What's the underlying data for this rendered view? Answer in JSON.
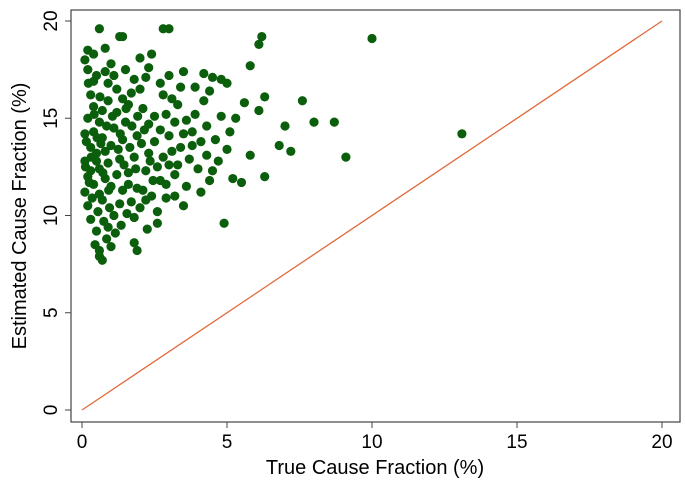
{
  "chart_data": {
    "type": "scatter",
    "title": "",
    "xlabel": "True Cause Fraction (%)",
    "ylabel": "Estimated Cause Fraction (%)",
    "xlim": [
      -0.4,
      20.5
    ],
    "ylim": [
      -0.6,
      20.6
    ],
    "xticks": [
      0,
      5,
      10,
      15,
      20
    ],
    "yticks": [
      0,
      5,
      10,
      15,
      20
    ],
    "grid": false,
    "point_color": "#0b5e0b",
    "line_color": "#e06a3a",
    "reference_line": {
      "from": [
        0,
        0
      ],
      "to": [
        20,
        20
      ]
    },
    "points": [
      [
        10,
        19.1
      ],
      [
        13.1,
        14.2
      ],
      [
        9.1,
        13
      ],
      [
        8.7,
        14.8
      ],
      [
        8,
        14.8
      ],
      [
        7.6,
        15.9
      ],
      [
        7.2,
        13.3
      ],
      [
        7,
        14.6
      ],
      [
        6.8,
        13.6
      ],
      [
        6.3,
        12
      ],
      [
        6.2,
        19.2
      ],
      [
        6.1,
        18.8
      ],
      [
        5.8,
        17.7
      ],
      [
        6.3,
        16.1
      ],
      [
        6.1,
        15.4
      ],
      [
        5.6,
        15.8
      ],
      [
        5.3,
        15
      ],
      [
        4.9,
        9.6
      ],
      [
        3,
        19.6
      ],
      [
        2.8,
        19.6
      ],
      [
        0.6,
        19.6
      ],
      [
        1.3,
        19.2
      ],
      [
        1.4,
        19.2
      ],
      [
        0.2,
        18.5
      ],
      [
        0.7,
        7.7
      ],
      [
        0.6,
        7.9
      ],
      [
        1.9,
        8.2
      ],
      [
        1.8,
        8.6
      ],
      [
        4.5,
        17.1
      ],
      [
        4.8,
        17
      ],
      [
        5,
        16.8
      ],
      [
        4.2,
        17.3
      ],
      [
        5.8,
        13.1
      ],
      [
        5.5,
        11.7
      ],
      [
        5.2,
        11.9
      ],
      [
        4.4,
        11.8
      ],
      [
        3.5,
        10.5
      ],
      [
        3.2,
        11
      ],
      [
        0.1,
        18
      ],
      [
        0.4,
        18.3
      ],
      [
        0.8,
        18.6
      ],
      [
        1,
        17.8
      ],
      [
        0.5,
        17.2
      ],
      [
        1.5,
        17.5
      ],
      [
        2,
        18.1
      ],
      [
        2.4,
        18.3
      ],
      [
        2.2,
        17.1
      ],
      [
        1.2,
        16.5
      ],
      [
        0.3,
        16.2
      ],
      [
        0.9,
        15.9
      ],
      [
        1.7,
        16.3
      ],
      [
        2.7,
        16.8
      ],
      [
        3.1,
        16
      ],
      [
        3.3,
        15.7
      ],
      [
        2.9,
        15.2
      ],
      [
        3.6,
        14.9
      ],
      [
        3.8,
        14.3
      ],
      [
        4.1,
        13.8
      ],
      [
        4.3,
        14.6
      ],
      [
        4.6,
        13.9
      ],
      [
        4.7,
        12.8
      ],
      [
        4.0,
        12.4
      ],
      [
        3.7,
        12.9
      ],
      [
        3.4,
        13.5
      ],
      [
        3.2,
        12.1
      ],
      [
        2.9,
        11.6
      ],
      [
        2.6,
        12.5
      ],
      [
        2.5,
        13.8
      ],
      [
        2.3,
        14.7
      ],
      [
        2.1,
        15.5
      ],
      [
        1.9,
        14.1
      ],
      [
        1.8,
        13
      ],
      [
        1.6,
        12.2
      ],
      [
        1.4,
        11.3
      ],
      [
        1.3,
        10.6
      ],
      [
        1.1,
        10
      ],
      [
        0.9,
        9.4
      ],
      [
        0.5,
        9.2
      ],
      [
        0.3,
        9.8
      ],
      [
        0.2,
        10.5
      ],
      [
        0.1,
        11.2
      ],
      [
        0.2,
        12
      ],
      [
        0.1,
        12.8
      ],
      [
        0.3,
        13.5
      ],
      [
        0.1,
        14.2
      ],
      [
        0.2,
        15
      ],
      [
        0.4,
        15.6
      ],
      [
        0.6,
        14.8
      ],
      [
        0.7,
        14
      ],
      [
        0.5,
        13.2
      ],
      [
        0.6,
        12.4
      ],
      [
        0.4,
        11.6
      ],
      [
        0.7,
        10.8
      ],
      [
        0.8,
        11.9
      ],
      [
        0.9,
        12.7
      ],
      [
        1,
        13.6
      ],
      [
        1.1,
        14.5
      ],
      [
        1.2,
        15.3
      ],
      [
        1.3,
        12.9
      ],
      [
        1.4,
        13.9
      ],
      [
        1.5,
        14.8
      ],
      [
        1.6,
        11.6
      ],
      [
        1.7,
        10.7
      ],
      [
        1.8,
        9.9
      ],
      [
        2,
        10.4
      ],
      [
        2.1,
        11.3
      ],
      [
        2.2,
        12.3
      ],
      [
        2.3,
        13.2
      ],
      [
        2.4,
        11
      ],
      [
        2.6,
        10.2
      ],
      [
        2.7,
        11.8
      ],
      [
        2.8,
        13
      ],
      [
        3,
        14.1
      ],
      [
        3.1,
        13.3
      ],
      [
        3.3,
        12.6
      ],
      [
        3.5,
        14.2
      ],
      [
        3.9,
        15.2
      ],
      [
        4.2,
        15.9
      ],
      [
        4.4,
        16.4
      ],
      [
        3.9,
        16.6
      ],
      [
        3.4,
        16.6
      ],
      [
        0.5,
        12.8
      ],
      [
        0.3,
        12.3
      ],
      [
        0.6,
        11.1
      ],
      [
        0.8,
        13.3
      ],
      [
        0.4,
        14.3
      ],
      [
        1,
        11.5
      ],
      [
        1.2,
        12.1
      ],
      [
        0.7,
        15.4
      ],
      [
        0.9,
        16.8
      ],
      [
        1.1,
        17.2
      ],
      [
        0.4,
        16.9
      ],
      [
        0.2,
        17.5
      ],
      [
        1.6,
        15.7
      ],
      [
        2,
        16.5
      ],
      [
        2.5,
        15.1
      ],
      [
        2.7,
        14.4
      ],
      [
        0.15,
        13.8
      ],
      [
        0.35,
        10.9
      ],
      [
        0.55,
        10.2
      ],
      [
        0.75,
        9.7
      ],
      [
        0.95,
        10.4
      ],
      [
        1.15,
        9.1
      ],
      [
        0.45,
        8.5
      ],
      [
        0.85,
        8.8
      ],
      [
        1.35,
        9.5
      ],
      [
        1.55,
        10.1
      ],
      [
        2.25,
        9.3
      ],
      [
        2.9,
        10.9
      ],
      [
        3.6,
        11.5
      ],
      [
        4.1,
        11.2
      ],
      [
        4.5,
        12.3
      ],
      [
        5,
        13.4
      ],
      [
        5.1,
        14.3
      ],
      [
        4.8,
        15.1
      ],
      [
        0.25,
        11.7
      ],
      [
        0.65,
        13.7
      ],
      [
        0.85,
        14.6
      ],
      [
        1.05,
        15.1
      ],
      [
        1.25,
        13.4
      ],
      [
        1.45,
        12.6
      ],
      [
        1.65,
        13.5
      ],
      [
        1.85,
        12.4
      ],
      [
        2.05,
        13.7
      ],
      [
        2.15,
        14.4
      ],
      [
        2.35,
        12.8
      ],
      [
        2.45,
        11.8
      ],
      [
        0.12,
        12.5
      ],
      [
        0.32,
        13
      ],
      [
        0.52,
        14
      ],
      [
        0.72,
        12.2
      ],
      [
        0.92,
        11.3
      ],
      [
        1.32,
        14.2
      ],
      [
        1.52,
        15.5
      ],
      [
        1.72,
        14.6
      ],
      [
        1.92,
        15.1
      ],
      [
        0.42,
        15.2
      ],
      [
        0.62,
        16.1
      ],
      [
        0.22,
        16.8
      ],
      [
        3.8,
        13.6
      ],
      [
        4.3,
        13.1
      ],
      [
        3.0,
        12.6
      ],
      [
        2.2,
        10.8
      ],
      [
        2.6,
        9.6
      ],
      [
        1.0,
        8.4
      ],
      [
        0.6,
        8.2
      ],
      [
        1.9,
        11.4
      ],
      [
        3.2,
        14.8
      ],
      [
        2.8,
        16.2
      ],
      [
        1.4,
        16.0
      ],
      [
        0.8,
        17.4
      ],
      [
        1.8,
        17.0
      ],
      [
        2.3,
        17.6
      ],
      [
        3.0,
        17.2
      ],
      [
        3.5,
        17.4
      ]
    ]
  }
}
